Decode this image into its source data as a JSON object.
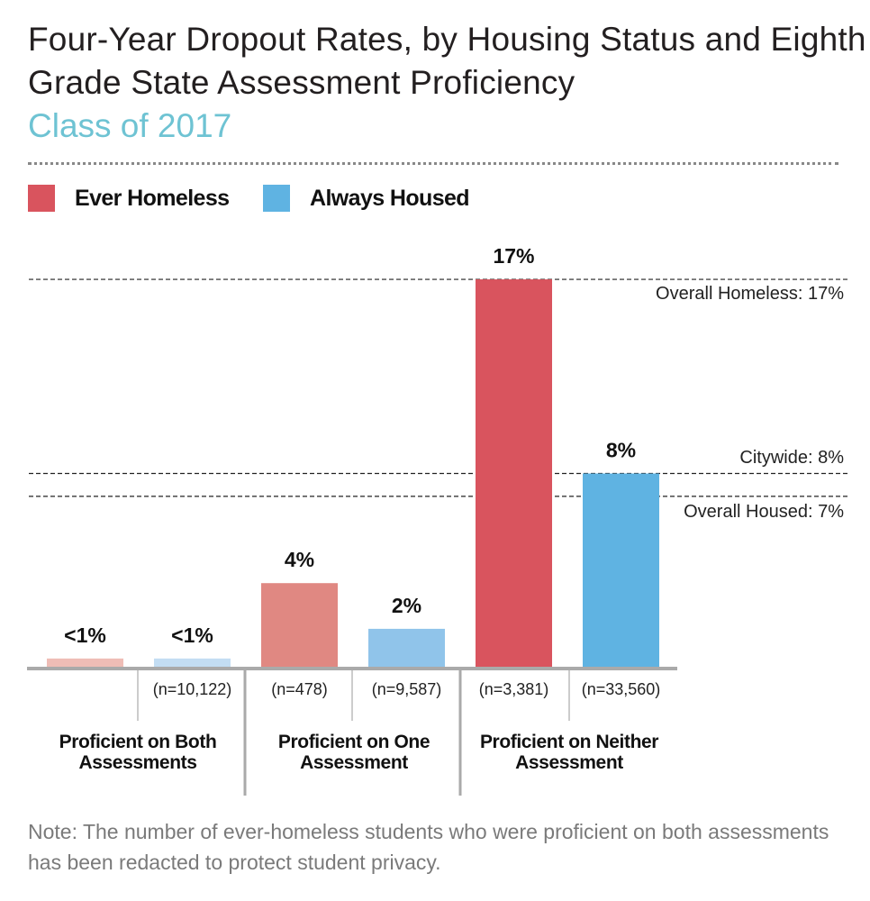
{
  "chart_data": {
    "type": "bar",
    "title": "Four-Year Dropout Rates, by Housing Status and Eighth Grade State Assessment Proficiency",
    "subtitle": "Class of 2017",
    "xlabel": "",
    "ylabel": "",
    "ylim": [
      0,
      17
    ],
    "grid": false,
    "legend_placement": "top-left",
    "legend": [
      "Ever Homeless",
      "Always Housed"
    ],
    "categories": [
      {
        "line1": "Proficient on Both",
        "line2": "Assessments"
      },
      {
        "line1": "Proficient on One",
        "line2": "Assessment"
      },
      {
        "line1": "Proficient on Neither",
        "line2": "Assessment"
      }
    ],
    "series": [
      {
        "name": "Ever Homeless",
        "values": [
          0.4,
          3.7,
          17
        ],
        "labels": [
          "<1%",
          "4%",
          "17%"
        ],
        "n": [
          "",
          "(n=478)",
          "(n=3,381)"
        ],
        "colors": [
          "#efbdb6",
          "#e08882",
          "#d9545e"
        ]
      },
      {
        "name": "Always Housed",
        "values": [
          0.4,
          1.7,
          8.5
        ],
        "labels": [
          "<1%",
          "2%",
          "8%"
        ],
        "n": [
          "(n=10,122)",
          "(n=9,587)",
          "(n=33,560)"
        ],
        "colors": [
          "#c3ddf3",
          "#90c4ea",
          "#5fb3e2"
        ]
      }
    ],
    "reference_lines": [
      {
        "label": "Overall Homeless: 17%",
        "value": 17
      },
      {
        "label": "Citywide: 8%",
        "value": 8.5
      },
      {
        "label": "Overall Housed: 7%",
        "value": 7.5
      }
    ],
    "note": "Note: The number of ever-homeless students who were proficient on both assessments has been redacted to protect student privacy."
  },
  "colors": {
    "homeless": "#d9545e",
    "housed": "#5fb3e2",
    "subtitle": "#6ec3d3"
  }
}
